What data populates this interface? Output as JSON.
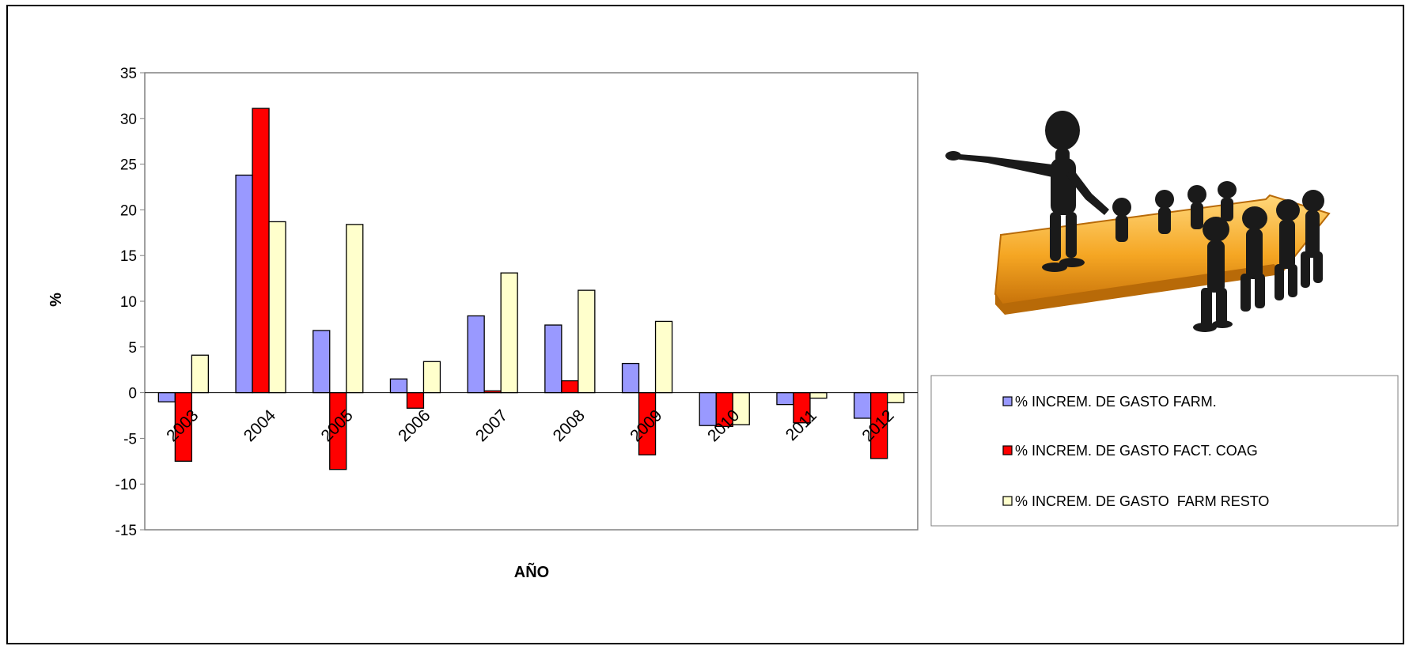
{
  "chart_data": {
    "type": "bar",
    "title": "",
    "xlabel": "AÑO",
    "ylabel": "%",
    "ylim": [
      -15,
      35
    ],
    "yticks": [
      35,
      30,
      25,
      20,
      15,
      10,
      5,
      0,
      -5,
      -10,
      -15
    ],
    "categories": [
      "2003",
      "2004",
      "2005",
      "2006",
      "2007",
      "2008",
      "2009",
      "2010",
      "2011",
      "2012"
    ],
    "series": [
      {
        "name": "% INCREM. DE GASTO FARM.",
        "color": "#9999ff",
        "values": [
          -1.0,
          23.8,
          6.8,
          1.5,
          8.4,
          7.4,
          3.2,
          -3.6,
          -1.3,
          -2.8
        ]
      },
      {
        "name": "% INCREM. DE GASTO FACT. COAG",
        "color": "#ff0000",
        "values": [
          -7.5,
          31.1,
          -8.4,
          -1.7,
          0.2,
          1.3,
          -6.8,
          -3.7,
          -3.3,
          -7.2
        ]
      },
      {
        "name": "% INCREM. DE GASTO  FARM RESTO",
        "color": "#ffffcc",
        "values": [
          4.1,
          18.7,
          18.4,
          3.4,
          13.1,
          11.2,
          7.8,
          -3.5,
          -0.6,
          -1.1
        ]
      }
    ],
    "grid": false,
    "legend_position": "right"
  },
  "illustration": {
    "icon": "leader-with-followers-arrow-illustration"
  }
}
